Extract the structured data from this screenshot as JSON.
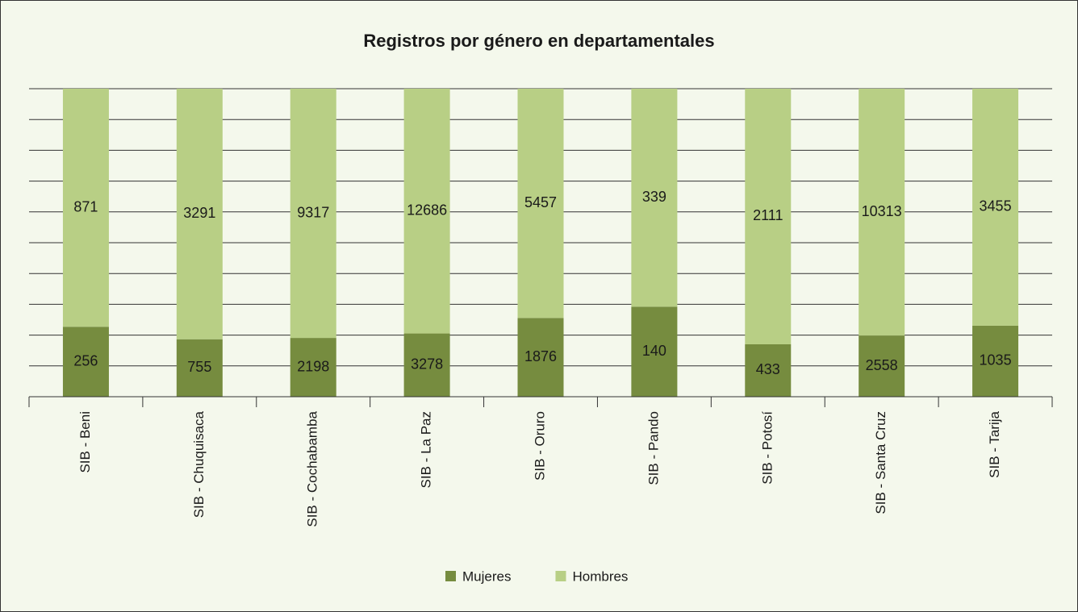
{
  "chart_data": {
    "type": "bar",
    "stack": "percent",
    "title": "Registros por género en departamentales",
    "categories": [
      "SIB - Beni",
      "SIB - Chuquisaca",
      "SIB - Cochabamba",
      "SIB - La Paz",
      "SIB - Oruro",
      "SIB - Pando",
      "SIB - Potosí",
      "SIB - Santa Cruz",
      "SIB - Tarija"
    ],
    "series": [
      {
        "name": "Mujeres",
        "color": "#768c3f",
        "values": [
          256,
          755,
          2198,
          3278,
          1876,
          140,
          433,
          2558,
          1035
        ]
      },
      {
        "name": "Hombres",
        "color": "#b8cf85",
        "values": [
          871,
          3291,
          9317,
          12686,
          5457,
          339,
          2111,
          10313,
          3455
        ]
      }
    ],
    "ylim": [
      0,
      100
    ],
    "yticks": [
      0,
      10,
      20,
      30,
      40,
      50,
      60,
      70,
      80,
      90,
      100
    ],
    "grid": true,
    "legend": "bottom"
  }
}
